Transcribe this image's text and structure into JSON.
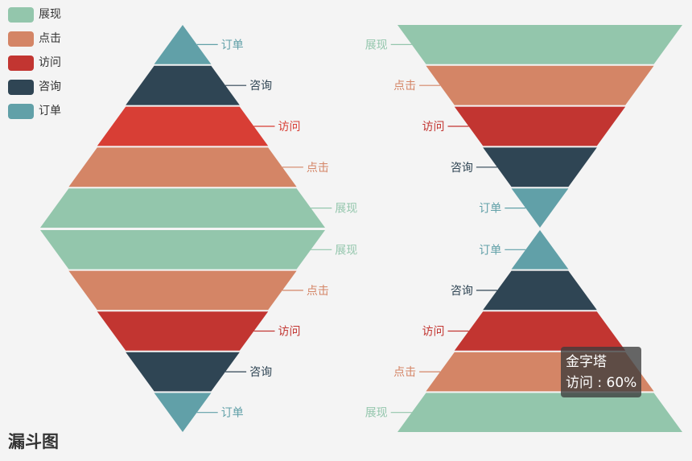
{
  "title": "漏斗图",
  "legend": [
    {
      "label": "展现",
      "color": "#93c6ac"
    },
    {
      "label": "点击",
      "color": "#d48566"
    },
    {
      "label": "访问",
      "color": "#c23531"
    },
    {
      "label": "咨询",
      "color": "#2f4554"
    },
    {
      "label": "订单",
      "color": "#61a0a8"
    }
  ],
  "tooltip": {
    "series": "金字塔",
    "text": "访问 : 60%"
  },
  "chart_data": [
    {
      "type": "funnel",
      "name": "漏斗图",
      "sort": "ascending",
      "label_position": "right",
      "data": [
        {
          "name": "订单",
          "value": 20,
          "color": "#61a0a8"
        },
        {
          "name": "咨询",
          "value": 40,
          "color": "#2f4554"
        },
        {
          "name": "访问",
          "value": 60,
          "color": "#d83e35"
        },
        {
          "name": "点击",
          "value": 80,
          "color": "#d48566"
        },
        {
          "name": "展现",
          "value": 100,
          "color": "#93c6ac"
        }
      ]
    },
    {
      "type": "funnel",
      "name": "漏斗图",
      "sort": "descending",
      "label_position": "right",
      "data": [
        {
          "name": "展现",
          "value": 100,
          "color": "#93c6ac"
        },
        {
          "name": "点击",
          "value": 80,
          "color": "#d48566"
        },
        {
          "name": "访问",
          "value": 60,
          "color": "#c23531"
        },
        {
          "name": "咨询",
          "value": 40,
          "color": "#2f4554"
        },
        {
          "name": "订单",
          "value": 20,
          "color": "#61a0a8"
        }
      ]
    },
    {
      "type": "funnel",
      "name": "漏斗图",
      "sort": "descending",
      "label_position": "left",
      "data": [
        {
          "name": "展现",
          "value": 100,
          "color": "#93c6ac"
        },
        {
          "name": "点击",
          "value": 80,
          "color": "#d48566"
        },
        {
          "name": "访问",
          "value": 60,
          "color": "#c23531"
        },
        {
          "name": "咨询",
          "value": 40,
          "color": "#2f4554"
        },
        {
          "name": "订单",
          "value": 20,
          "color": "#61a0a8"
        }
      ]
    },
    {
      "type": "funnel",
      "name": "金字塔",
      "sort": "ascending",
      "label_position": "left",
      "data": [
        {
          "name": "订单",
          "value": 20,
          "color": "#61a0a8"
        },
        {
          "name": "咨询",
          "value": 40,
          "color": "#2f4554"
        },
        {
          "name": "访问",
          "value": 60,
          "color": "#c23531"
        },
        {
          "name": "点击",
          "value": 80,
          "color": "#d48566"
        },
        {
          "name": "展现",
          "value": 100,
          "color": "#93c6ac"
        }
      ]
    }
  ]
}
